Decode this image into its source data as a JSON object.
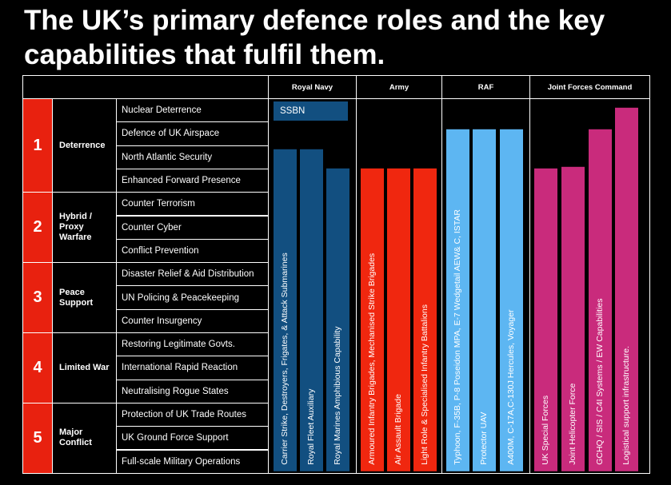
{
  "title": "The UK’s primary defence roles and the key capabilities that fulfil them.",
  "roles": [
    {
      "number": "1",
      "label": "Deterrence",
      "capabilities": [
        "Nuclear Deterrence",
        "Defence of UK Airspace",
        "North Atlantic Security",
        "Enhanced Forward Presence"
      ]
    },
    {
      "number": "2",
      "label": "Hybrid / Proxy Warfare",
      "capabilities": [
        "Counter Terrorism",
        "Counter Cyber",
        "Conflict Prevention"
      ]
    },
    {
      "number": "3",
      "label": "Peace Support",
      "capabilities": [
        "Disaster Relief & Aid Distribution",
        "UN Policing & Peacekeeping",
        "Counter Insurgency"
      ]
    },
    {
      "number": "4",
      "label": "Limited War",
      "capabilities": [
        "Restoring Legitimate Govts.",
        "International Rapid Reaction",
        "Neutralising Rogue States"
      ]
    },
    {
      "number": "5",
      "label": "Major Conflict",
      "capabilities": [
        "Protection of UK Trade Routes",
        "UK Ground Force Support",
        "Full-scale Military Operations"
      ]
    }
  ],
  "services": [
    {
      "name": "Royal Navy",
      "color": "#124f80",
      "assets": [
        "SSBN",
        "Carrier Strike, Destroyers, Frigates, & Attack Submarines",
        "Royal Fleet Auxiliary",
        "Royal Marines Amphibious Capability"
      ]
    },
    {
      "name": "Army",
      "color": "#f0270f",
      "assets": [
        "Armoured Infantry Brigades, Mechanised Strike Brigades",
        "Air Assault Brigade",
        "Light Role & Specialised Infantry Battalions"
      ]
    },
    {
      "name": "RAF",
      "color": "#5db6f2",
      "assets": [
        "Typhoon, F-35B, P-8 Poseidon MPA, E-7 Wedgetail AEW& C, ISTAR",
        "Protector UAV",
        "A400M, C-17A,C-130J Hercules, Voyager"
      ]
    },
    {
      "name": "Joint Forces Command",
      "color": "#c92b7c",
      "assets": [
        "UK Special Forces",
        "Joint Helicopter Force",
        "GCHQ / SIS / C4I Systems / EW Capabilities",
        "Logistical support infrastructure."
      ]
    }
  ]
}
